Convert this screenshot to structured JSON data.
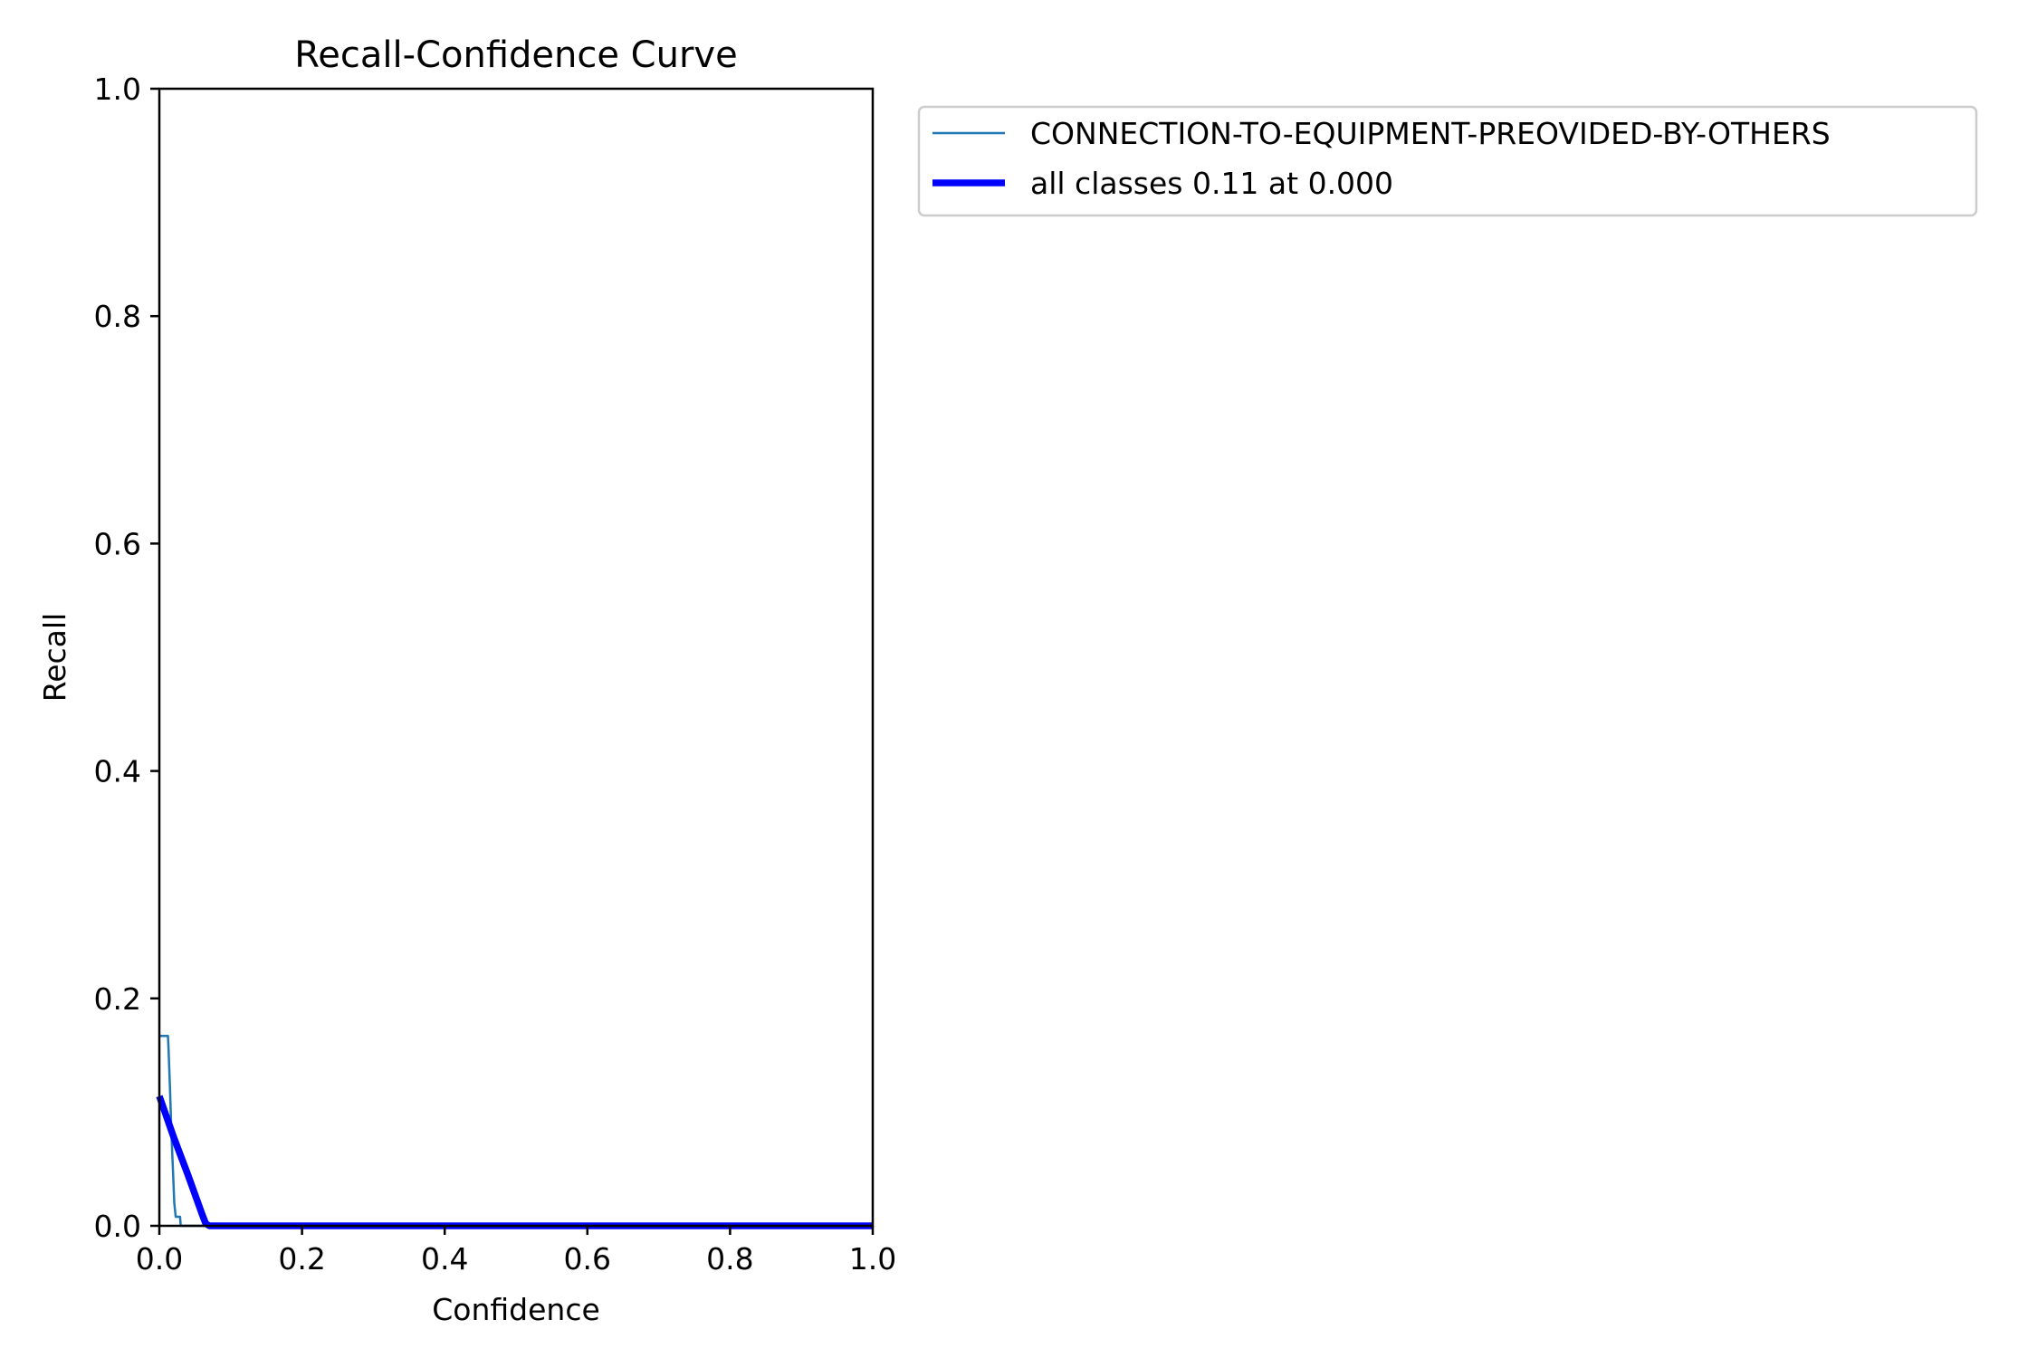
{
  "chart_data": {
    "type": "line",
    "title": "Recall-Confidence Curve",
    "xlabel": "Confidence",
    "ylabel": "Recall",
    "xlim": [
      0,
      1
    ],
    "ylim": [
      0,
      1
    ],
    "xticks": [
      "0.0",
      "0.2",
      "0.4",
      "0.6",
      "0.8",
      "1.0"
    ],
    "yticks": [
      "0.0",
      "0.2",
      "0.4",
      "0.6",
      "0.8",
      "1.0"
    ],
    "grid": false,
    "legend_position": "outside upper right",
    "series": [
      {
        "name": "CONNECTION-TO-EQUIPMENT-PREOVIDED-BY-OTHERS",
        "color": "#1f77b4",
        "line_width": "thin",
        "x": [
          0.0,
          0.012,
          0.013,
          0.015,
          0.017,
          0.019,
          0.021,
          0.023,
          0.025,
          0.026,
          0.029,
          0.03,
          0.031,
          1.0
        ],
        "y": [
          0.167,
          0.167,
          0.155,
          0.12,
          0.08,
          0.05,
          0.02,
          0.008,
          0.008,
          0.008,
          0.008,
          0.0,
          0.0,
          0.0
        ]
      },
      {
        "name": "all classes 0.11 at 0.000",
        "color": "#0000ff",
        "line_width": "thick",
        "x": [
          0.0,
          0.02,
          0.04,
          0.06,
          0.065,
          0.07,
          1.0
        ],
        "y": [
          0.114,
          0.078,
          0.045,
          0.01,
          0.002,
          0.0,
          0.0
        ]
      }
    ]
  }
}
